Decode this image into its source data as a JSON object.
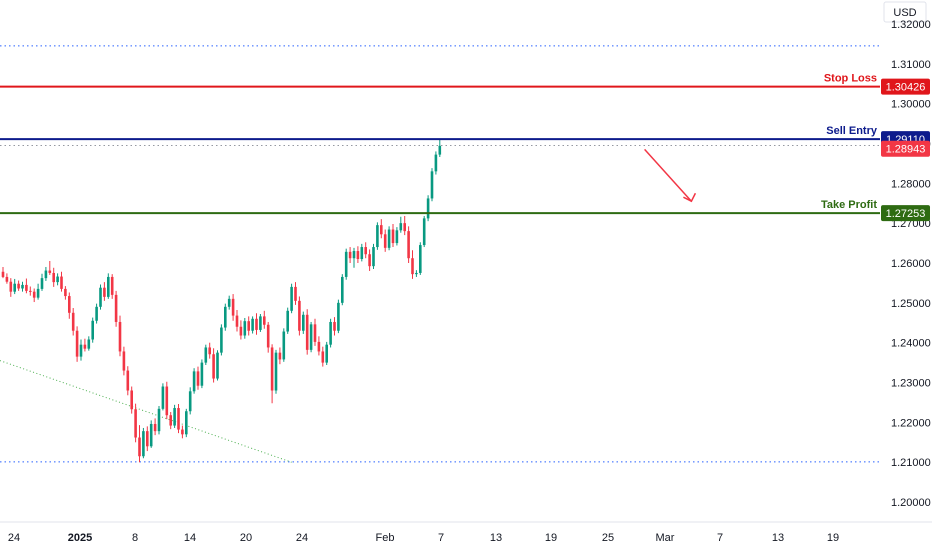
{
  "chart_data": {
    "type": "candlestick",
    "currency": "USD",
    "y_range": [
      1.195,
      1.326
    ],
    "y_ticks": [
      "1.32000",
      "1.31000",
      "1.30000",
      "1.29000",
      "1.28000",
      "1.27000",
      "1.26000",
      "1.25000",
      "1.24000",
      "1.23000",
      "1.22000",
      "1.21000",
      "1.20000"
    ],
    "x_ticks": [
      {
        "label": "24",
        "bold": false
      },
      {
        "label": "2025",
        "bold": true
      },
      {
        "label": "8",
        "bold": false
      },
      {
        "label": "14",
        "bold": false
      },
      {
        "label": "20",
        "bold": false
      },
      {
        "label": "24",
        "bold": false
      },
      {
        "label": "Feb",
        "bold": false
      },
      {
        "label": "7",
        "bold": false
      },
      {
        "label": "13",
        "bold": false
      },
      {
        "label": "19",
        "bold": false
      },
      {
        "label": "25",
        "bold": false
      },
      {
        "label": "Mar",
        "bold": false
      },
      {
        "label": "7",
        "bold": false
      },
      {
        "label": "13",
        "bold": false
      },
      {
        "label": "19",
        "bold": false
      }
    ],
    "levels": [
      {
        "name": "Stop Loss",
        "value": 1.30426,
        "label": "1.30426",
        "color": "#e0161b",
        "style": "solid"
      },
      {
        "name": "Sell Entry",
        "value": 1.2911,
        "label": "1.29110",
        "color": "#0d1b8c",
        "style": "solid"
      },
      {
        "name": "Take Profit",
        "value": 1.27253,
        "label": "1.27253",
        "color": "#2e6b12",
        "style": "solid"
      }
    ],
    "current_price": {
      "value": 1.28943,
      "label": "1.28943",
      "color": "#f23645"
    },
    "dotted_levels": [
      1.3145,
      1.2911,
      1.2895,
      1.2101
    ],
    "trendline": {
      "from": {
        "index": 0,
        "value": 1.2355
      },
      "to": {
        "index": 74,
        "value": 1.21
      }
    },
    "projection_arrow": {
      "from": {
        "index": 164,
        "value": 1.2885
      },
      "to": {
        "index": 176,
        "value": 1.2755
      },
      "color": "#f23645"
    },
    "candles": [
      [
        1.2578,
        1.259,
        1.2562,
        1.2565
      ],
      [
        1.2565,
        1.2574,
        1.2548,
        1.2553
      ],
      [
        1.2553,
        1.2562,
        1.2515,
        1.2528
      ],
      [
        1.2528,
        1.256,
        1.2522,
        1.2548
      ],
      [
        1.2548,
        1.2556,
        1.253,
        1.2536
      ],
      [
        1.2536,
        1.2553,
        1.2528,
        1.2545
      ],
      [
        1.2545,
        1.2561,
        1.2524,
        1.253
      ],
      [
        1.253,
        1.2541,
        1.2518,
        1.2528
      ],
      [
        1.2528,
        1.2536,
        1.2502,
        1.2513
      ],
      [
        1.2513,
        1.2548,
        1.2508,
        1.2535
      ],
      [
        1.2535,
        1.2573,
        1.253,
        1.2562
      ],
      [
        1.2562,
        1.259,
        1.2555,
        1.2581
      ],
      [
        1.2581,
        1.2605,
        1.257,
        1.2575
      ],
      [
        1.2575,
        1.2588,
        1.254,
        1.2552
      ],
      [
        1.2552,
        1.2574,
        1.2544,
        1.2566
      ],
      [
        1.2566,
        1.2578,
        1.2528,
        1.2535
      ],
      [
        1.2535,
        1.2542,
        1.2508,
        1.2517
      ],
      [
        1.2517,
        1.2526,
        1.246,
        1.2475
      ],
      [
        1.2475,
        1.2487,
        1.2418,
        1.243
      ],
      [
        1.243,
        1.2441,
        1.2352,
        1.2365
      ],
      [
        1.2365,
        1.2408,
        1.2355,
        1.2395
      ],
      [
        1.2395,
        1.241,
        1.2378,
        1.2385
      ],
      [
        1.2385,
        1.2416,
        1.238,
        1.2408
      ],
      [
        1.2408,
        1.2463,
        1.24,
        1.2455
      ],
      [
        1.2455,
        1.2498,
        1.2448,
        1.249
      ],
      [
        1.249,
        1.2546,
        1.2483,
        1.2538
      ],
      [
        1.2538,
        1.2552,
        1.2505,
        1.2515
      ],
      [
        1.2515,
        1.2574,
        1.251,
        1.2565
      ],
      [
        1.2565,
        1.2572,
        1.251,
        1.252
      ],
      [
        1.252,
        1.253,
        1.244,
        1.2452
      ],
      [
        1.2452,
        1.2468,
        1.2366,
        1.2378
      ],
      [
        1.2378,
        1.239,
        1.2318,
        1.233
      ],
      [
        1.233,
        1.2341,
        1.2268,
        1.228
      ],
      [
        1.228,
        1.229,
        1.2222,
        1.2233
      ],
      [
        1.2233,
        1.2247,
        1.215,
        1.2162
      ],
      [
        1.2162,
        1.2193,
        1.21,
        1.2115
      ],
      [
        1.2115,
        1.2186,
        1.211,
        1.2178
      ],
      [
        1.2178,
        1.219,
        1.2128,
        1.214
      ],
      [
        1.214,
        1.2205,
        1.2136,
        1.2196
      ],
      [
        1.2196,
        1.221,
        1.2168,
        1.2178
      ],
      [
        1.2178,
        1.2241,
        1.217,
        1.2234
      ],
      [
        1.2234,
        1.2298,
        1.223,
        1.229
      ],
      [
        1.229,
        1.2302,
        1.2208,
        1.2218
      ],
      [
        1.2218,
        1.2226,
        1.2183,
        1.2192
      ],
      [
        1.2192,
        1.2244,
        1.2186,
        1.2236
      ],
      [
        1.2236,
        1.2246,
        1.2173,
        1.2182
      ],
      [
        1.2182,
        1.2192,
        1.216,
        1.217
      ],
      [
        1.217,
        1.2234,
        1.2163,
        1.2228
      ],
      [
        1.2228,
        1.2288,
        1.222,
        1.2278
      ],
      [
        1.2278,
        1.2336,
        1.2272,
        1.2328
      ],
      [
        1.2328,
        1.234,
        1.2282,
        1.2292
      ],
      [
        1.2292,
        1.2358,
        1.2286,
        1.235
      ],
      [
        1.235,
        1.2395,
        1.2344,
        1.2388
      ],
      [
        1.2388,
        1.24,
        1.236,
        1.2371
      ],
      [
        1.2371,
        1.2386,
        1.23,
        1.231
      ],
      [
        1.231,
        1.2381,
        1.2305,
        1.2375
      ],
      [
        1.2375,
        1.2446,
        1.2368,
        1.2438
      ],
      [
        1.2438,
        1.2498,
        1.243,
        1.249
      ],
      [
        1.249,
        1.2518,
        1.2483,
        1.251
      ],
      [
        1.251,
        1.2522,
        1.2455,
        1.2468
      ],
      [
        1.2468,
        1.2482,
        1.2428,
        1.244
      ],
      [
        1.244,
        1.2456,
        1.2408,
        1.2418
      ],
      [
        1.2418,
        1.2462,
        1.241,
        1.2454
      ],
      [
        1.2454,
        1.2466,
        1.2418,
        1.243
      ],
      [
        1.243,
        1.2466,
        1.2423,
        1.246
      ],
      [
        1.246,
        1.2474,
        1.242,
        1.2432
      ],
      [
        1.2432,
        1.2472,
        1.2427,
        1.2466
      ],
      [
        1.2466,
        1.248,
        1.2435,
        1.2445
      ],
      [
        1.2445,
        1.2452,
        1.2375,
        1.2388
      ],
      [
        1.2388,
        1.2396,
        1.2248,
        1.228
      ],
      [
        1.228,
        1.2382,
        1.2272,
        1.2375
      ],
      [
        1.2375,
        1.2388,
        1.2346,
        1.2358
      ],
      [
        1.2358,
        1.2436,
        1.2352,
        1.2428
      ],
      [
        1.2428,
        1.2488,
        1.2422,
        1.248
      ],
      [
        1.248,
        1.2548,
        1.2474,
        1.254
      ],
      [
        1.254,
        1.2552,
        1.2495,
        1.2505
      ],
      [
        1.2505,
        1.2516,
        1.2418,
        1.243
      ],
      [
        1.243,
        1.2478,
        1.2422,
        1.247
      ],
      [
        1.247,
        1.2484,
        1.237,
        1.2382
      ],
      [
        1.2382,
        1.2452,
        1.2376,
        1.2446
      ],
      [
        1.2446,
        1.246,
        1.2392,
        1.2402
      ],
      [
        1.2402,
        1.2416,
        1.2368,
        1.2378
      ],
      [
        1.2378,
        1.239,
        1.234,
        1.235
      ],
      [
        1.235,
        1.2402,
        1.2344,
        1.2395
      ],
      [
        1.2395,
        1.246,
        1.2388,
        1.2452
      ],
      [
        1.2452,
        1.2464,
        1.2418,
        1.243
      ],
      [
        1.243,
        1.2508,
        1.2424,
        1.25
      ],
      [
        1.25,
        1.2572,
        1.2494,
        1.2565
      ],
      [
        1.2565,
        1.2636,
        1.2558,
        1.2628
      ],
      [
        1.2628,
        1.264,
        1.26,
        1.2612
      ],
      [
        1.2612,
        1.2638,
        1.2588,
        1.263
      ],
      [
        1.263,
        1.2642,
        1.26,
        1.261
      ],
      [
        1.261,
        1.2648,
        1.2604,
        1.264
      ],
      [
        1.264,
        1.2652,
        1.2612,
        1.2622
      ],
      [
        1.2622,
        1.2634,
        1.258,
        1.2592
      ],
      [
        1.2592,
        1.2648,
        1.2585,
        1.264
      ],
      [
        1.264,
        1.2702,
        1.2633,
        1.2695
      ],
      [
        1.2695,
        1.271,
        1.2662,
        1.2672
      ],
      [
        1.2672,
        1.2684,
        1.2628,
        1.2638
      ],
      [
        1.2638,
        1.2692,
        1.2632,
        1.2684
      ],
      [
        1.2684,
        1.2698,
        1.264,
        1.265
      ],
      [
        1.265,
        1.269,
        1.2644,
        1.2682
      ],
      [
        1.2682,
        1.2716,
        1.2676,
        1.27
      ],
      [
        1.27,
        1.2718,
        1.267,
        1.268
      ],
      [
        1.268,
        1.2692,
        1.26,
        1.2612
      ],
      [
        1.2612,
        1.2632,
        1.256,
        1.2572
      ],
      [
        1.2572,
        1.2582,
        1.2565,
        1.2575
      ],
      [
        1.2575,
        1.2652,
        1.257,
        1.2645
      ],
      [
        1.2645,
        1.2718,
        1.264,
        1.2712
      ],
      [
        1.2712,
        1.277,
        1.2705,
        1.2762
      ],
      [
        1.2762,
        1.2838,
        1.2755,
        1.283
      ],
      [
        1.283,
        1.288,
        1.2822,
        1.2872
      ],
      [
        1.2872,
        1.2912,
        1.2866,
        1.2894
      ]
    ]
  }
}
